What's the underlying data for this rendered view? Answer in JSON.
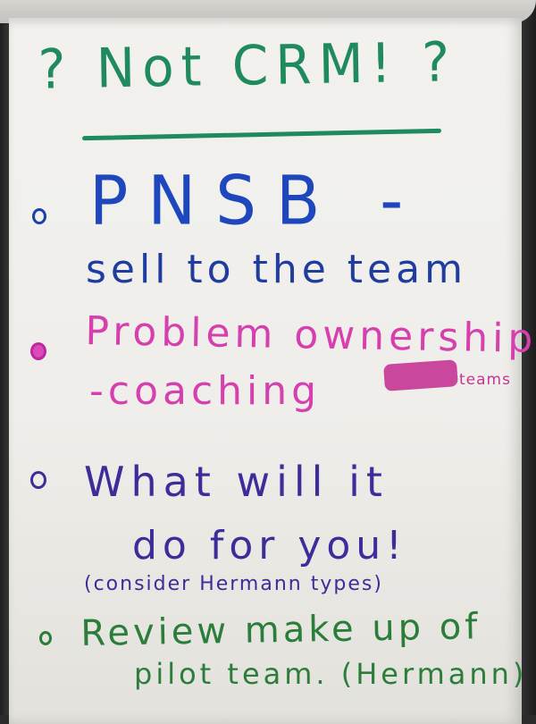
{
  "flipchart": {
    "title": "? Not CRM! ?",
    "items": [
      {
        "line1": "PNSB -",
        "line2": "sell to the team",
        "color": "#1e46bd"
      },
      {
        "line1": "Problem ownership",
        "line2": "-coaching",
        "aside": "teams",
        "color": "#d63fae"
      },
      {
        "line1": "What will it",
        "line2": "do for you!",
        "note": "(consider Hermann types)",
        "color": "#3e2c9a"
      },
      {
        "line1": "Review make up of",
        "line2": "pilot team. (Hermann)",
        "color": "#2b7e3a"
      }
    ],
    "title_color": "#1f8a5e"
  }
}
